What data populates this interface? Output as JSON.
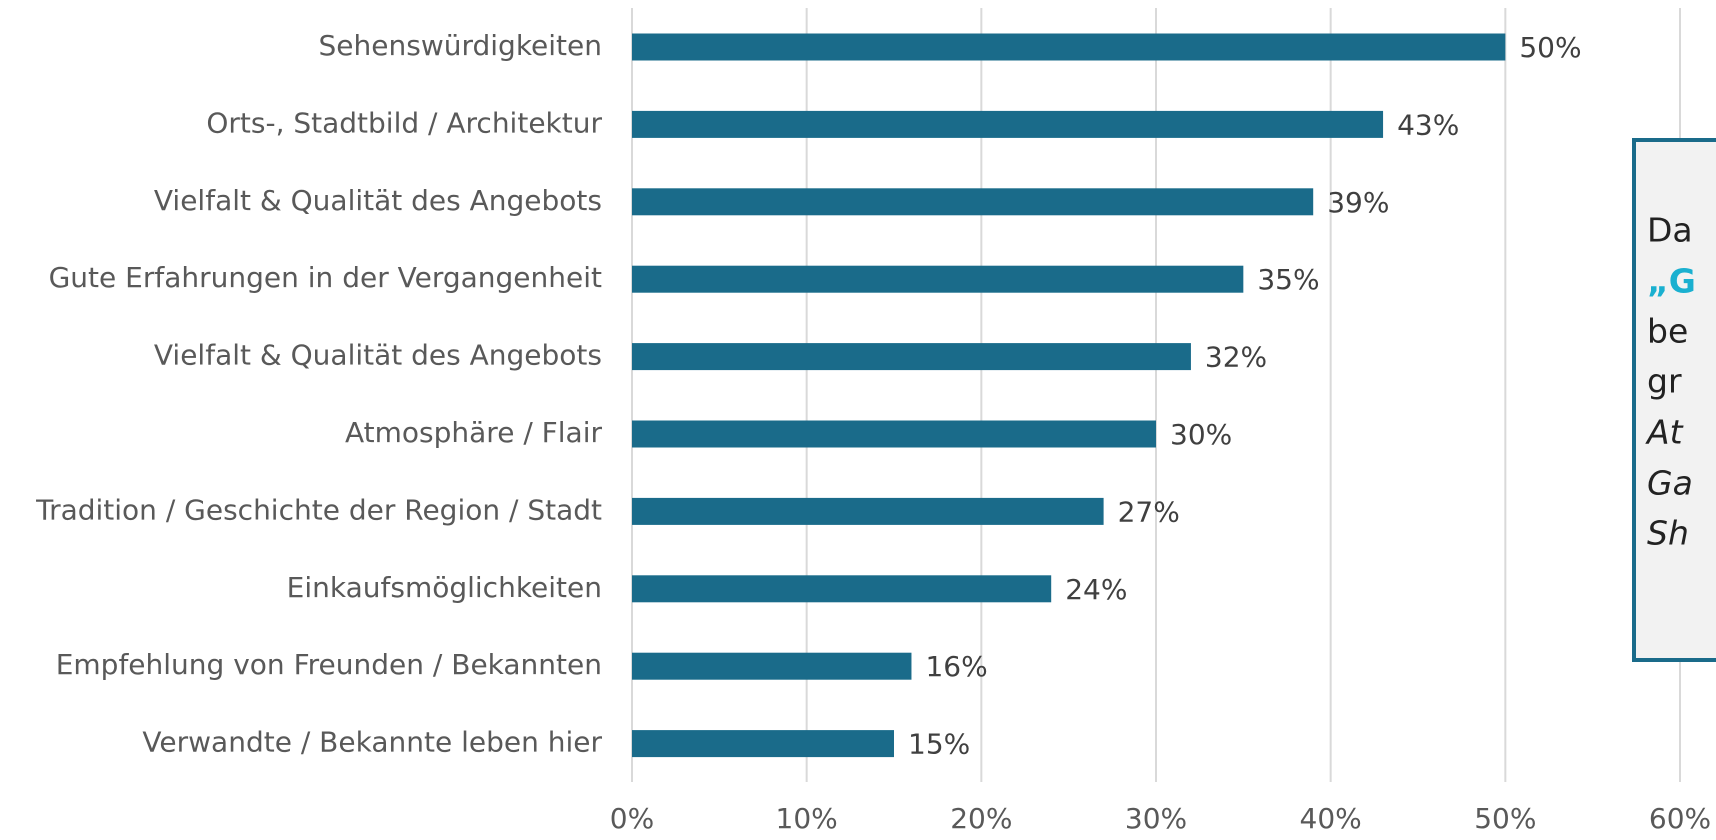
{
  "chart_data": {
    "type": "bar",
    "orientation": "horizontal",
    "categories": [
      "Sehenswürdigkeiten",
      "Orts-, Stadtbild / Architektur",
      "Vielfalt & Qualität des Angebots",
      "Gute Erfahrungen in der Vergangenheit",
      "Vielfalt & Qualität des Angebots",
      "Atmosphäre / Flair",
      "Tradition / Geschichte der Region / Stadt",
      "Einkaufsmöglichkeiten",
      "Empfehlung von Freunden / Bekannten",
      "Verwandte / Bekannte leben hier"
    ],
    "values": [
      50,
      43,
      39,
      35,
      32,
      30,
      27,
      24,
      16,
      15
    ],
    "value_labels": [
      "50%",
      "43%",
      "39%",
      "35%",
      "32%",
      "30%",
      "27%",
      "24%",
      "16%",
      "15%"
    ],
    "color": "#1a6b8a",
    "xlim": [
      0,
      60
    ],
    "xticks": [
      {
        "value": 0,
        "label": "0%"
      },
      {
        "value": 10,
        "label": "10%"
      },
      {
        "value": 20,
        "label": "20%"
      },
      {
        "value": 30,
        "label": "30%"
      },
      {
        "value": 40,
        "label": "40%"
      },
      {
        "value": 50,
        "label": "50%"
      },
      {
        "value": 60,
        "label": "60%"
      }
    ],
    "grid": true
  },
  "callout": {
    "lines": [
      "Da",
      "„G",
      "be",
      "gr",
      "At",
      "Ga",
      "Sh"
    ]
  }
}
